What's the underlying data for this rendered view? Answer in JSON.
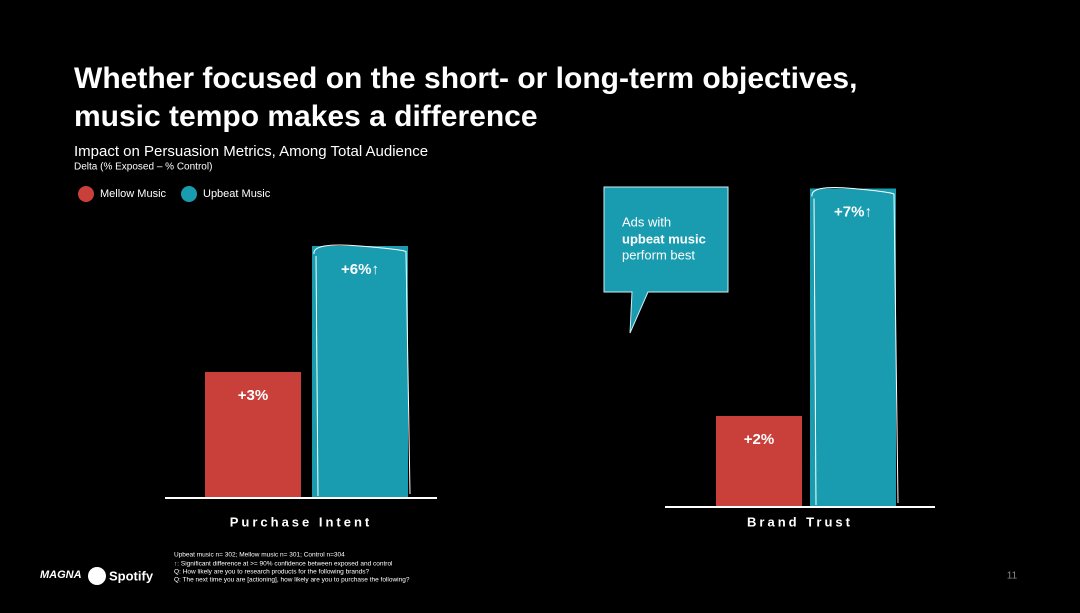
{
  "title": [
    "Whether focused on the short- or long-term objectives,",
    "music tempo makes a difference"
  ],
  "subtitle": "Impact on Persuasion Metrics, Among Total Audience",
  "subnote": "Delta (% Exposed – % Control)",
  "callout": [
    "Ads with",
    "upbeat music",
    "perform best"
  ],
  "footnotes": [
    "Upbeat music n= 302; Mellow music n= 301; Control n=304",
    "↑: Significant difference at >= 90% confidence between exposed and control",
    "Q: How likely are you to research products for the following brands?",
    "Q: The next time you are [actioning], how likely are you to purchase the following?"
  ],
  "logos": [
    "MAGNA",
    "Spotify"
  ],
  "page_number": "11",
  "chart_data": [
    {
      "type": "bar",
      "categories": [
        "Purchase Intent"
      ],
      "series": [
        {
          "name": "Mellow Music",
          "color": "#c9403a",
          "values": [
            3
          ],
          "value_labels": [
            "+3%"
          ]
        },
        {
          "name": "Upbeat Music",
          "color": "#1a9cb0",
          "values": [
            6
          ],
          "value_labels": [
            "+6%↑"
          ]
        }
      ]
    },
    {
      "type": "bar",
      "categories": [
        "Brand Trust"
      ],
      "series": [
        {
          "name": "Mellow Music",
          "color": "#c9403a",
          "values": [
            2
          ],
          "value_labels": [
            "+2%"
          ]
        },
        {
          "name": "Upbeat Music",
          "color": "#1a9cb0",
          "values": [
            7
          ],
          "value_labels": [
            "+7%↑"
          ]
        }
      ]
    }
  ]
}
